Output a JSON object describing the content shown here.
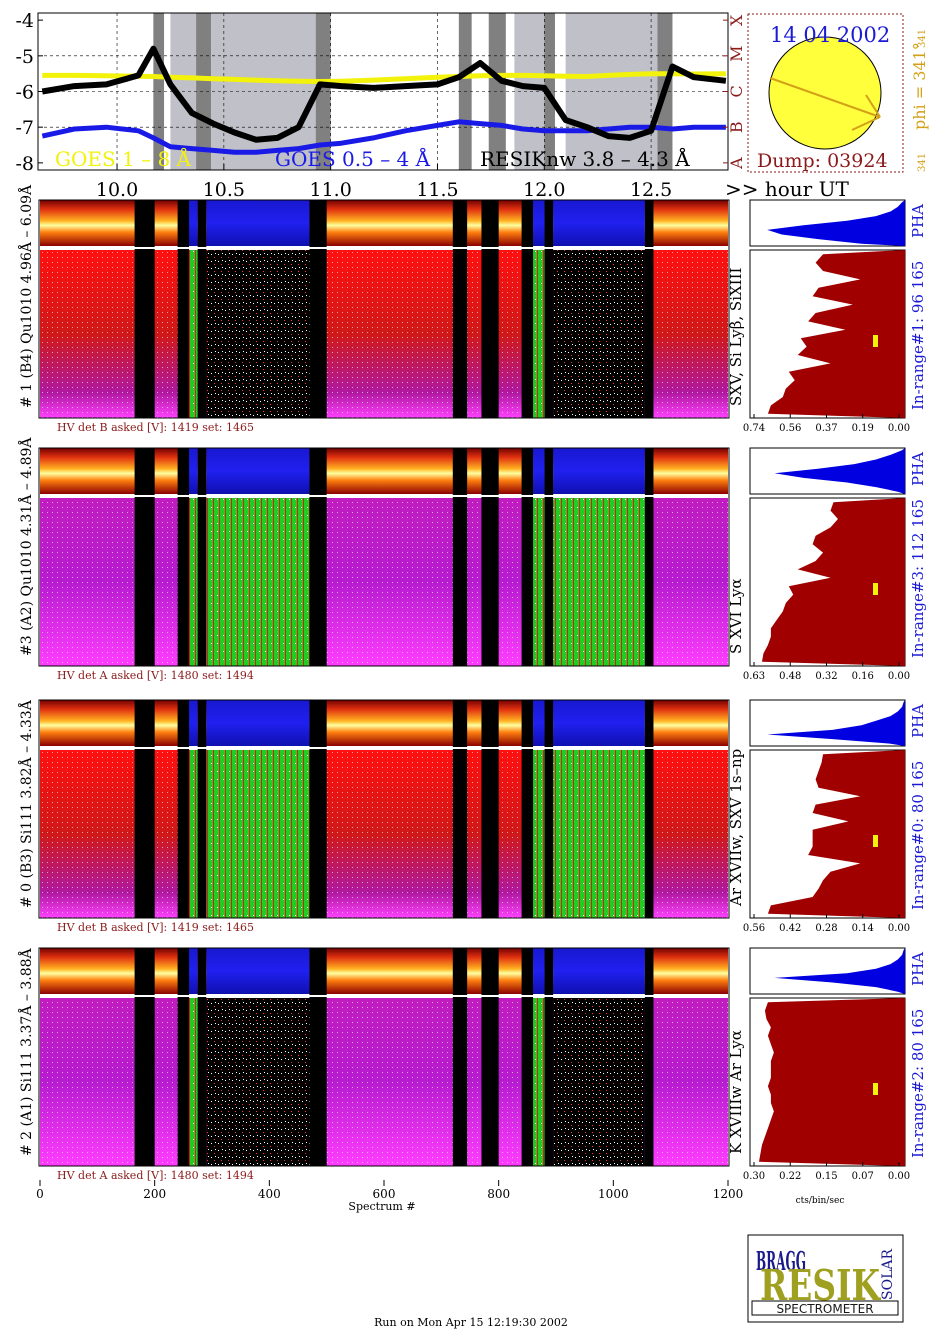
{
  "colors": {
    "goes_long": "#f2f20a",
    "goes_short": "#1a1ae6",
    "resik": "#000000",
    "histogram": "#a00000",
    "pha": "#0000e0",
    "darkred": "#8b1a1a",
    "gold": "#d4a017",
    "blue_text": "#1b1bd6",
    "sun": "#ffff3c",
    "pattern_red": "#e21c1c",
    "pattern_magenta": "#b019c9",
    "pattern_green": "#22cc22",
    "pattern_blue": "#1a1ad9",
    "dark_band": "#808080",
    "light_band": "#c0c0c8",
    "black_band": "#000000"
  },
  "goes_panel": {
    "y_ticks": [
      "-4",
      "-5",
      "-6",
      "-7",
      "-8"
    ],
    "flare_class_labels": [
      "A",
      "B",
      "C",
      "M",
      "X"
    ],
    "x_ticks": [
      "10.0",
      "10.5",
      "11.0",
      "11.5",
      "12.0",
      "12.5"
    ],
    "hour_axis_label": ">> hour UT",
    "legend": {
      "goes_long": "GOES 1 – 8 Å",
      "goes_short": "GOES 0.5 – 4 Å",
      "resik": "RESIKnw 3.8 – 4.3 Å"
    }
  },
  "sun_panel": {
    "date": "14 04 2002",
    "dump": "Dump: 03924",
    "phi": "phi = 341°",
    "phi_small": "341",
    "phi_small2": "341"
  },
  "channels": [
    {
      "id": "ch1",
      "ylabel": "# 1 (B4) Qu1010 4.96Å – 6.09Å",
      "lines": "SXV, Si Lyβ, SiXIII",
      "inrange": "In-range#1:  96 165",
      "pha_label": "PHA",
      "hv": "HV det B asked [V]:  1419 set:  1465",
      "hist_ticks": [
        "0.74",
        "0.56",
        "0.37",
        "0.19",
        "0.00"
      ]
    },
    {
      "id": "ch3",
      "ylabel": "#3 (A2) Qu1010  4.31Å – 4.89Å",
      "lines": "S XVI Lyα",
      "inrange": "In-range#3:  112 165",
      "pha_label": "PHA",
      "hv": "HV det A asked [V]:  1480 set:  1494",
      "hist_ticks": [
        "0.63",
        "0.48",
        "0.32",
        "0.16",
        "0.00"
      ]
    },
    {
      "id": "ch0",
      "ylabel": "# 0 (B3) Si111  3.82Å – 4.33Å",
      "lines": "Ar XVIIw, SXV 1s–np",
      "inrange": "In-range#0:  80 165",
      "pha_label": "PHA",
      "hv": "HV det B asked [V]:  1419 set:  1465",
      "hist_ticks": [
        "0.56",
        "0.42",
        "0.28",
        "0.14",
        "0.00"
      ]
    },
    {
      "id": "ch2",
      "ylabel": "# 2 (A1) Si111  3.37Å – 3.88Å",
      "lines": "K XVIIIw  Ar Lyα",
      "inrange": "In-range#2:  80 165",
      "pha_label": "PHA",
      "hv": "HV det A asked [V]:  1480 set:  1494",
      "hist_ticks": [
        "0.30",
        "0.22",
        "0.15",
        "0.07",
        "0.00"
      ]
    }
  ],
  "spectrum_axis": {
    "ticks": [
      "0",
      "200",
      "400",
      "600",
      "800",
      "1000",
      "1200"
    ],
    "label": "Spectrum #",
    "hist_unit": "cts/bin/sec"
  },
  "logo": {
    "bragg": "BRAGG",
    "resik": "RESIK",
    "solar": "SOLAR",
    "spectrometer": "SPECTROMETER"
  },
  "footer": "Run on Mon Apr 15 12:19:30 2002",
  "chart_data": [
    {
      "type": "line",
      "x_unit": "hour UT",
      "x": [
        9.65,
        9.8,
        9.95,
        10.1,
        10.17,
        10.25,
        10.35,
        10.45,
        10.55,
        10.65,
        10.75,
        10.85,
        10.95,
        11.05,
        11.2,
        11.35,
        11.5,
        11.6,
        11.7,
        11.8,
        11.9,
        12.0,
        12.1,
        12.2,
        12.3,
        12.4,
        12.5,
        12.6,
        12.7,
        12.85
      ],
      "xlim": [
        9.63,
        12.86
      ],
      "ylim": [
        -8.2,
        -3.8
      ],
      "series": [
        {
          "name": "GOES 1 – 8 Å",
          "values": [
            -5.55,
            -5.55,
            -5.56,
            -5.57,
            -5.58,
            -5.6,
            -5.62,
            -5.64,
            -5.66,
            -5.68,
            -5.7,
            -5.71,
            -5.72,
            -5.71,
            -5.68,
            -5.64,
            -5.6,
            -5.58,
            -5.56,
            -5.55,
            -5.55,
            -5.56,
            -5.57,
            -5.58,
            -5.55,
            -5.52,
            -5.5,
            -5.5,
            -5.51,
            -5.5
          ]
        },
        {
          "name": "GOES 0.5 – 4 Å",
          "values": [
            -7.25,
            -7.05,
            -7.0,
            -7.1,
            -7.3,
            -7.55,
            -7.6,
            -7.65,
            -7.7,
            -7.7,
            -7.65,
            -7.6,
            -7.5,
            -7.45,
            -7.3,
            -7.1,
            -6.95,
            -6.85,
            -6.9,
            -6.95,
            -7.05,
            -7.1,
            -7.1,
            -7.1,
            -7.05,
            -7.0,
            -7.0,
            -7.05,
            -7.0,
            -7.0
          ]
        },
        {
          "name": "RESIKnw 3.8 – 4.3 Å",
          "values": [
            -6.0,
            -5.85,
            -5.8,
            -5.55,
            -4.8,
            -5.8,
            -6.6,
            -6.9,
            -7.15,
            -7.35,
            -7.3,
            -7.0,
            -5.8,
            -5.85,
            -5.9,
            -5.85,
            -5.8,
            -5.6,
            -5.2,
            -5.7,
            -5.85,
            -5.9,
            -6.8,
            -7.0,
            -7.25,
            -7.3,
            -7.1,
            -5.3,
            -5.6,
            -5.7
          ]
        }
      ]
    }
  ]
}
